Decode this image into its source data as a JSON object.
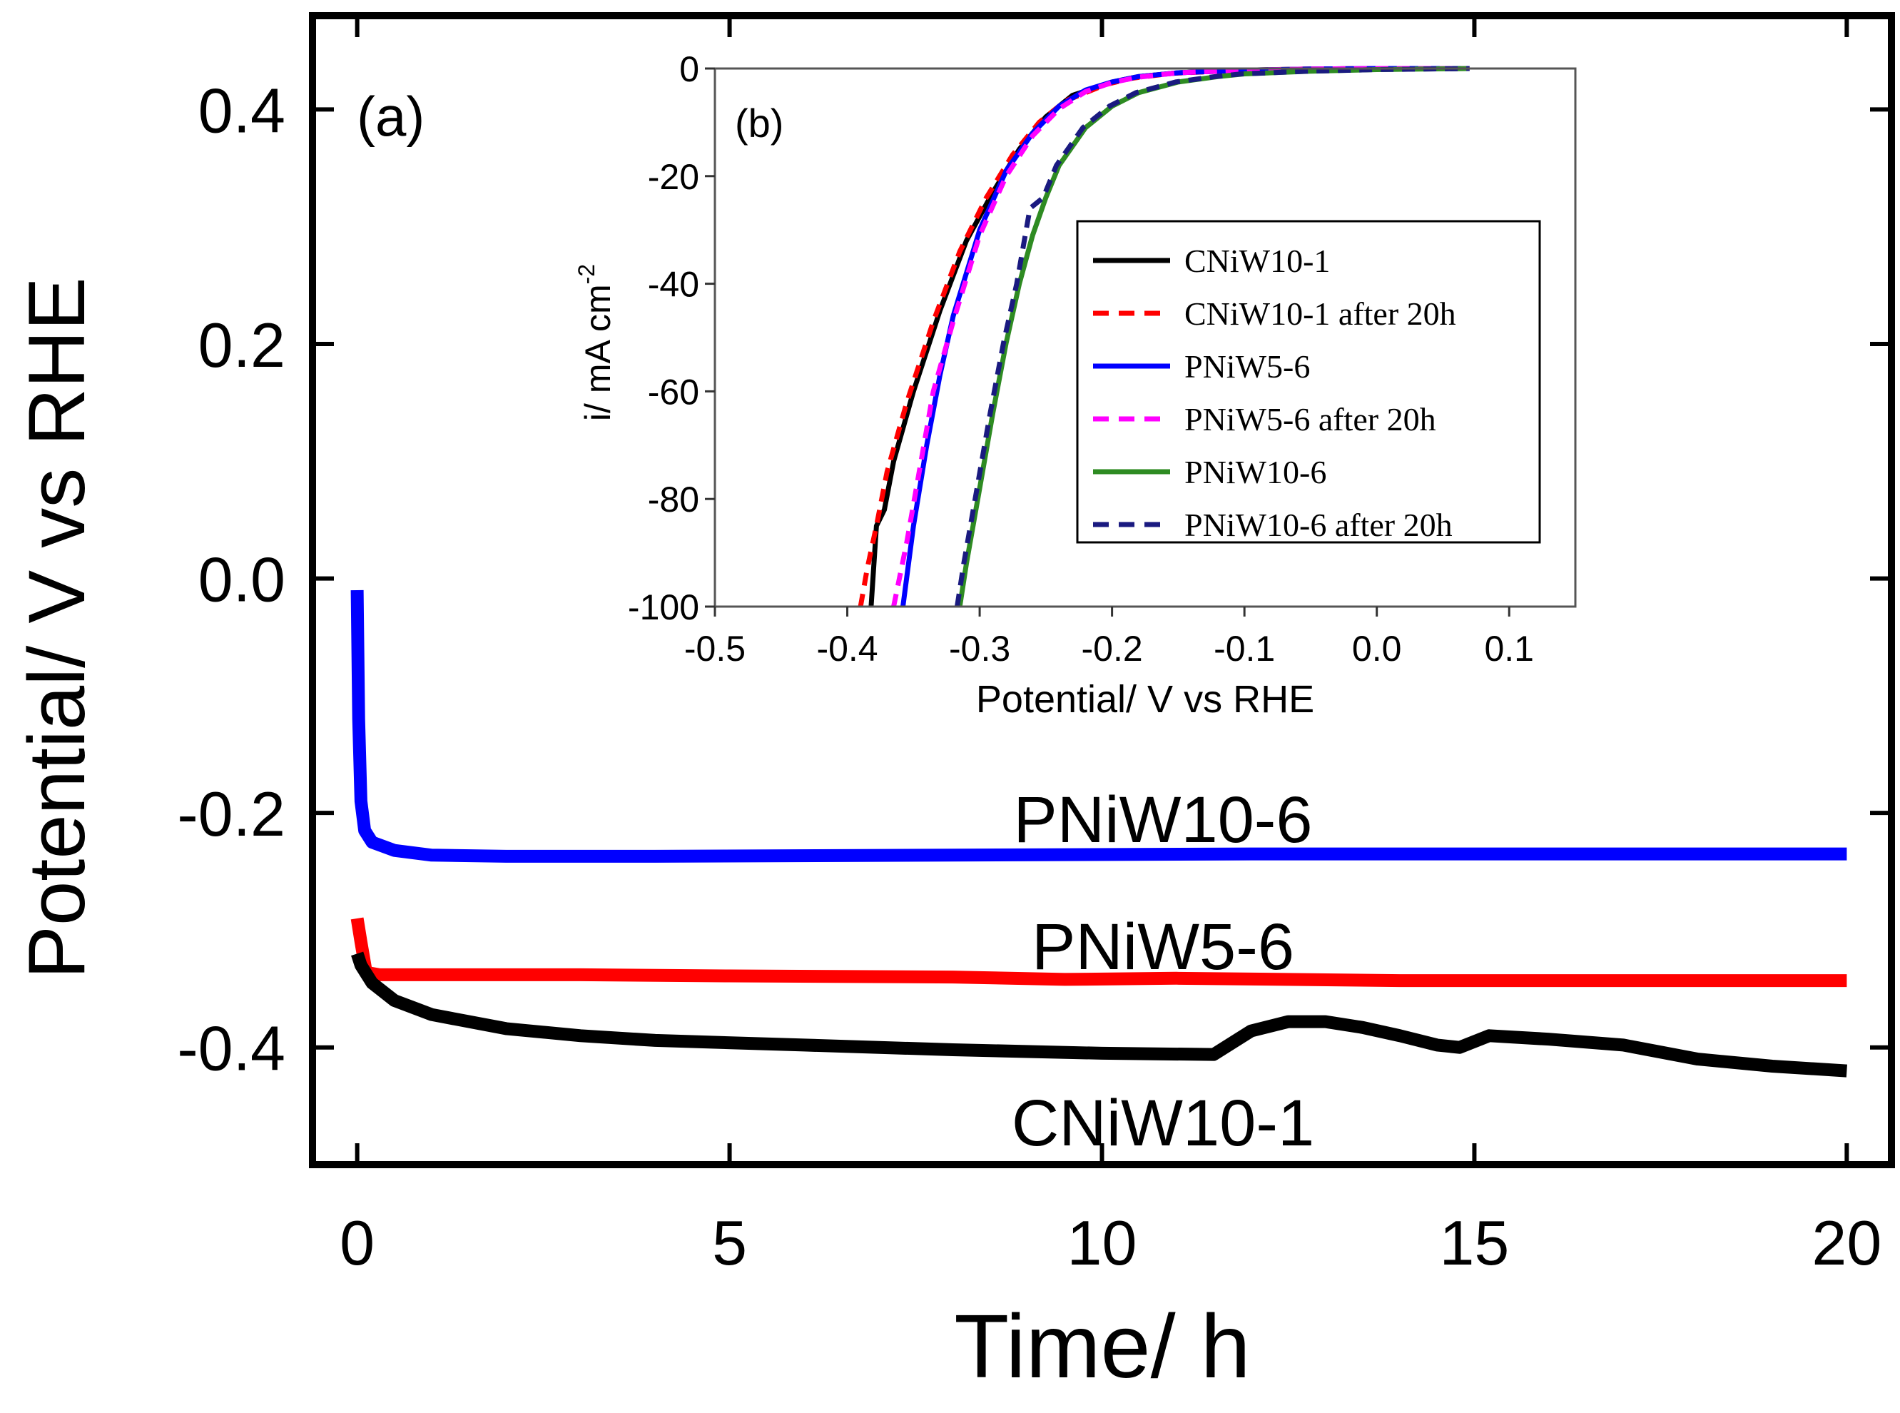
{
  "chart_data": [
    {
      "type": "line",
      "panel_label": "(a)",
      "xlabel": "Time/ h",
      "ylabel": "Potential/ V vs RHE",
      "xlim": [
        -0.6,
        20.6
      ],
      "ylim": [
        -0.5,
        0.48
      ],
      "xticks": [
        0,
        5,
        10,
        15,
        20
      ],
      "xtick_labels": [
        "0",
        "5",
        "10",
        "15",
        "20"
      ],
      "yticks": [
        0.4,
        0.2,
        0.0,
        -0.2,
        -0.4
      ],
      "ytick_labels": [
        "0.4",
        "0.2",
        "0.0",
        "-0.2",
        "-0.4"
      ],
      "grid": false,
      "series": [
        {
          "name": "PNiW10-6",
          "label": "PNiW10-6",
          "color": "#0000ff",
          "x": [
            0,
            0.02,
            0.05,
            0.1,
            0.2,
            0.5,
            1,
            2,
            4,
            8,
            12,
            16,
            20
          ],
          "y": [
            -0.01,
            -0.12,
            -0.19,
            -0.215,
            -0.225,
            -0.232,
            -0.236,
            -0.237,
            -0.237,
            -0.236,
            -0.235,
            -0.235,
            -0.235
          ]
        },
        {
          "name": "PNiW5-6",
          "label": "PNiW5-6",
          "color": "#ff0000",
          "x": [
            0,
            0.05,
            0.12,
            0.3,
            1,
            3,
            5,
            8,
            9.5,
            11,
            14,
            17,
            20
          ],
          "y": [
            -0.29,
            -0.31,
            -0.336,
            -0.338,
            -0.338,
            -0.338,
            -0.339,
            -0.34,
            -0.342,
            -0.341,
            -0.343,
            -0.343,
            -0.343
          ]
        },
        {
          "name": "CNiW10-1",
          "label": "CNiW10-1",
          "color": "#000000",
          "x": [
            0,
            0.05,
            0.2,
            0.5,
            1,
            2,
            3,
            4,
            6,
            8,
            10,
            11.5,
            12,
            12.5,
            13,
            13.5,
            14,
            14.5,
            14.8,
            15.2,
            16,
            17,
            18,
            19,
            20
          ],
          "y": [
            -0.32,
            -0.33,
            -0.345,
            -0.36,
            -0.372,
            -0.384,
            -0.39,
            -0.394,
            -0.398,
            -0.402,
            -0.405,
            -0.406,
            -0.386,
            -0.378,
            -0.378,
            -0.383,
            -0.39,
            -0.398,
            -0.4,
            -0.39,
            -0.393,
            -0.398,
            -0.41,
            -0.416,
            -0.42
          ]
        }
      ]
    },
    {
      "type": "line",
      "panel_label": "(b)",
      "xlabel": "Potential/ V vs RHE",
      "ylabel_main": "i/ mA cm",
      "ylabel_sup": "-2",
      "xlim": [
        -0.5,
        0.15
      ],
      "ylim": [
        -100,
        0
      ],
      "xticks": [
        -0.5,
        -0.4,
        -0.3,
        -0.2,
        -0.1,
        0.0,
        0.1
      ],
      "xtick_labels": [
        "-0.5",
        "-0.4",
        "-0.3",
        "-0.2",
        "-0.1",
        "0.0",
        "0.1"
      ],
      "yticks": [
        0,
        -20,
        -40,
        -60,
        -80,
        -100
      ],
      "ytick_labels": [
        "0",
        "-20",
        "-40",
        "-60",
        "-80",
        "-100"
      ],
      "grid": false,
      "legend_position": "right",
      "series": [
        {
          "name": "CNiW10-1",
          "color": "#000000",
          "dash": "solid",
          "x": [
            -0.382,
            -0.378,
            -0.372,
            -0.365,
            -0.35,
            -0.33,
            -0.31,
            -0.29,
            -0.27,
            -0.25,
            -0.23,
            -0.2,
            -0.18,
            -0.15,
            -0.1,
            -0.05,
            0.0,
            0.07
          ],
          "y": [
            -100,
            -85,
            -82,
            -73,
            -60,
            -45,
            -32,
            -23,
            -15,
            -9,
            -5,
            -2.5,
            -1.5,
            -0.8,
            -0.3,
            -0.1,
            0,
            0
          ]
        },
        {
          "name": "CNiW10-1 after 20h",
          "color": "#ff0000",
          "dash": "dashed",
          "x": [
            -0.39,
            -0.385,
            -0.378,
            -0.37,
            -0.355,
            -0.335,
            -0.315,
            -0.295,
            -0.275,
            -0.255,
            -0.235,
            -0.205,
            -0.185,
            -0.155,
            -0.105,
            -0.055,
            0.0,
            0.07
          ],
          "y": [
            -100,
            -93,
            -85,
            -75,
            -62,
            -47,
            -34,
            -24,
            -16,
            -10,
            -6,
            -3,
            -1.8,
            -0.9,
            -0.35,
            -0.1,
            0,
            0
          ]
        },
        {
          "name": "PNiW5-6",
          "color": "#0000ff",
          "dash": "solid",
          "x": [
            -0.358,
            -0.35,
            -0.34,
            -0.33,
            -0.32,
            -0.3,
            -0.28,
            -0.26,
            -0.24,
            -0.22,
            -0.2,
            -0.18,
            -0.15,
            -0.1,
            -0.05,
            0.0,
            0.07
          ],
          "y": [
            -100,
            -85,
            -70,
            -57,
            -46,
            -30,
            -19,
            -12,
            -7,
            -4,
            -2.5,
            -1.5,
            -0.8,
            -0.3,
            -0.1,
            0,
            0
          ]
        },
        {
          "name": "PNiW5-6 after 20h",
          "color": "#ff00ff",
          "dash": "dashed",
          "x": [
            -0.365,
            -0.355,
            -0.345,
            -0.335,
            -0.32,
            -0.3,
            -0.28,
            -0.26,
            -0.24,
            -0.22,
            -0.2,
            -0.18,
            -0.15,
            -0.1,
            -0.05,
            0.0,
            0.07
          ],
          "y": [
            -100,
            -88,
            -74,
            -60,
            -47,
            -31,
            -20,
            -12.5,
            -7.5,
            -4.3,
            -2.6,
            -1.6,
            -0.8,
            -0.3,
            -0.1,
            0,
            0
          ]
        },
        {
          "name": "PNiW10-6",
          "color": "#2e8b22",
          "dash": "solid",
          "x": [
            -0.315,
            -0.31,
            -0.3,
            -0.29,
            -0.28,
            -0.27,
            -0.26,
            -0.25,
            -0.24,
            -0.22,
            -0.2,
            -0.18,
            -0.15,
            -0.12,
            -0.1,
            -0.05,
            0.0,
            0.07
          ],
          "y": [
            -100,
            -92,
            -78,
            -64,
            -51,
            -40,
            -31,
            -24,
            -18,
            -11,
            -7,
            -4.5,
            -2.5,
            -1.5,
            -1,
            -0.5,
            -0.2,
            0
          ]
        },
        {
          "name": "PNiW10-6 after 20h",
          "color": "#1a1a80",
          "dash": "dashed",
          "x": [
            -0.317,
            -0.312,
            -0.302,
            -0.292,
            -0.282,
            -0.272,
            -0.262,
            -0.252,
            -0.242,
            -0.222,
            -0.202,
            -0.182,
            -0.152,
            -0.122,
            -0.102,
            -0.052,
            0.0,
            0.07
          ],
          "y": [
            -100,
            -92,
            -78,
            -64,
            -51,
            -40,
            -26,
            -24,
            -18,
            -11,
            -7,
            -4.5,
            -2.5,
            -1.5,
            -1,
            -0.5,
            -0.2,
            0
          ]
        }
      ]
    }
  ]
}
